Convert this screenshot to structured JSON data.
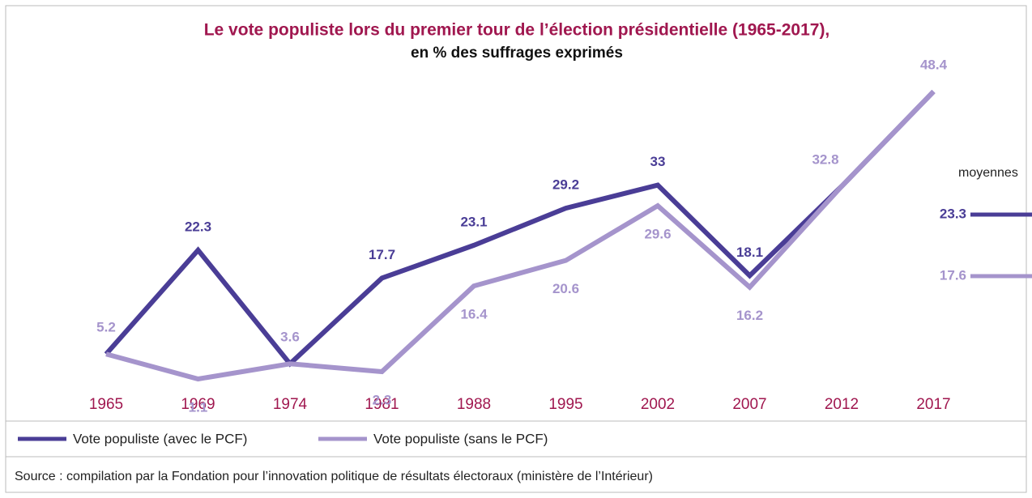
{
  "chart_data": {
    "type": "line",
    "title": "Le vote populiste lors du premier tour de l’élection présidentielle (1965-2017),",
    "subtitle": "en % des suffrages exprimés",
    "categories": [
      "1965",
      "1969",
      "1974",
      "1981",
      "1988",
      "1995",
      "2002",
      "2007",
      "2012",
      "2017"
    ],
    "series": [
      {
        "name": "Vote populiste (avec le PCF)",
        "color": "#4a3d96",
        "values": [
          5.2,
          22.3,
          3.6,
          17.7,
          23.1,
          29.2,
          33,
          18.1,
          32.8,
          48.4
        ],
        "average": 23.3
      },
      {
        "name": "Vote populiste (sans le PCF)",
        "color": "#a594cc",
        "values": [
          5.2,
          1.1,
          3.6,
          2.3,
          16.4,
          20.6,
          29.6,
          16.2,
          32.8,
          48.4
        ],
        "average": 17.6
      }
    ],
    "averages_label": "moyennes",
    "source": "Source : compilation par la Fondation pour l’innovation politique de résultats électoraux (ministère de l’Intérieur)"
  }
}
